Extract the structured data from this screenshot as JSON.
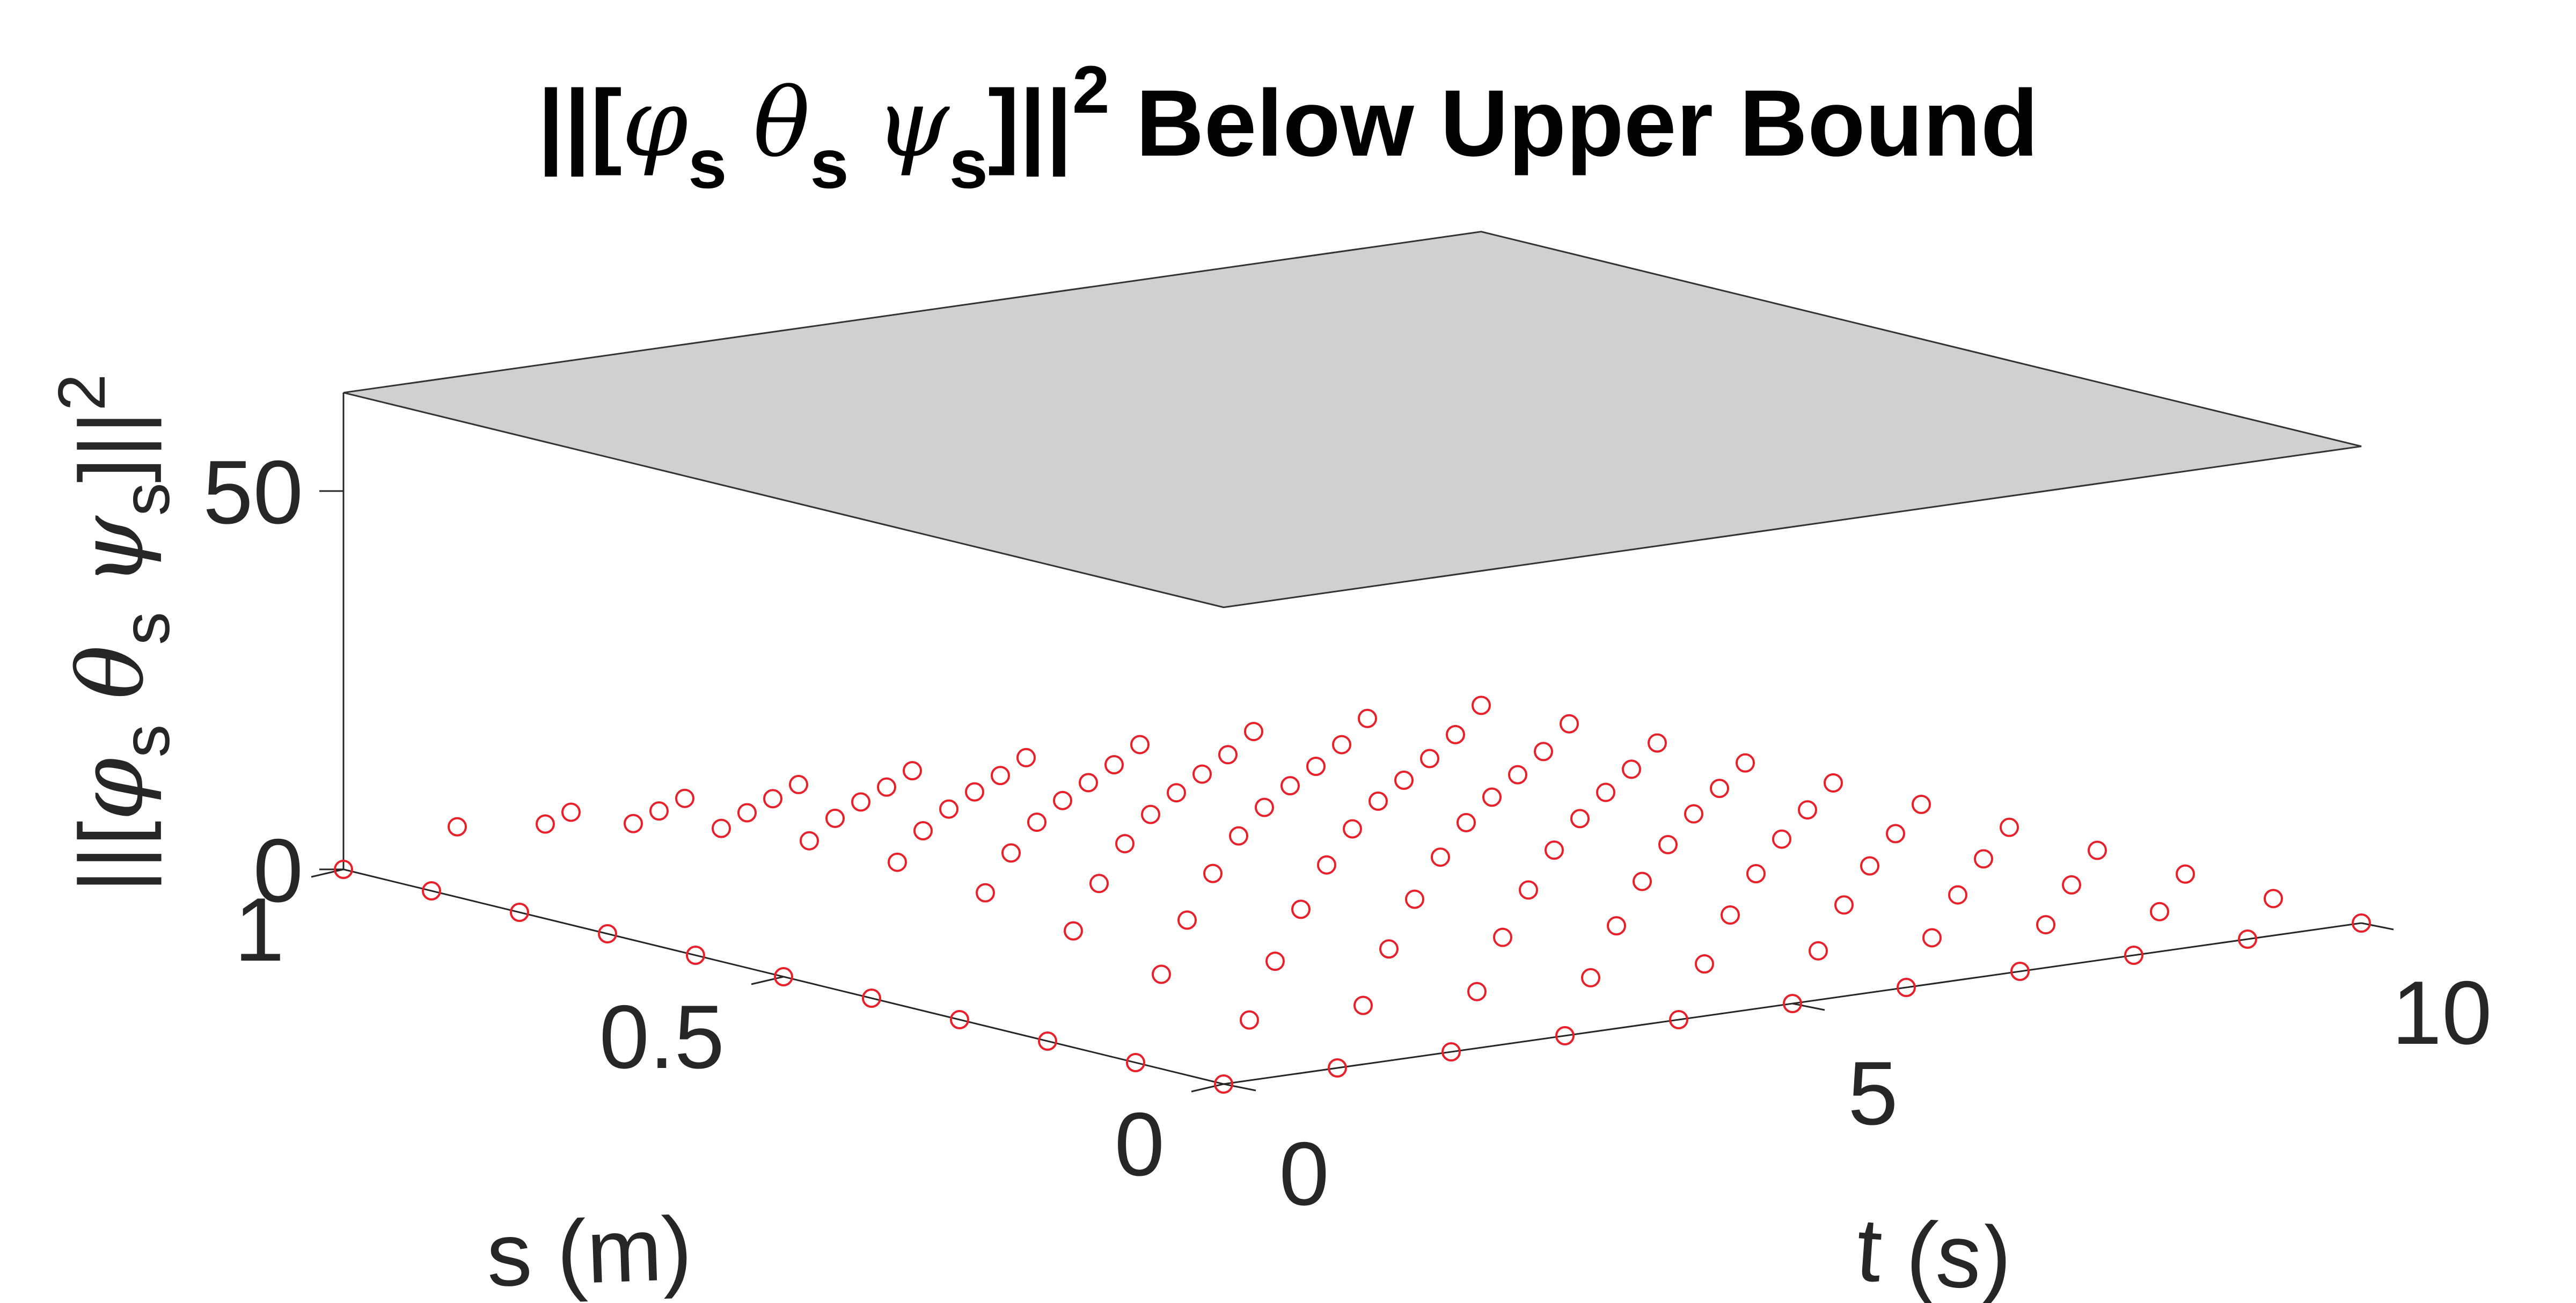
{
  "chart_data": {
    "type": "surface-3d",
    "title": {
      "prefix": "||[",
      "phi": "φ",
      "theta": "θ",
      "psi": "ψ",
      "subscript": "s",
      "close": "]||",
      "power": "2",
      "rest": " Below Upper Bound"
    },
    "axes": {
      "x": {
        "label": "t (s)",
        "lim": [
          0,
          10
        ],
        "ticks": [
          0,
          5,
          10
        ],
        "tick_labels": [
          "0",
          "5",
          "10"
        ]
      },
      "y": {
        "label": "s (m)",
        "lim": [
          0,
          1
        ],
        "ticks": [
          0,
          0.5,
          1
        ],
        "tick_labels": [
          "0",
          "0.5",
          "1"
        ]
      },
      "z": {
        "label": {
          "prefix": "||[",
          "phi": "φ",
          "theta": "θ",
          "psi": "ψ",
          "subscript": "s",
          "close": "]||",
          "power": "2"
        },
        "ticks": [
          0,
          50
        ],
        "tick_labels": [
          "0",
          "50"
        ]
      }
    },
    "series": [
      {
        "kind": "plane",
        "z": 63,
        "color": "#d0d0d0",
        "edge_color": "#333333"
      },
      {
        "kind": "scatter-surface",
        "marker": "circle",
        "color": "#e8202a",
        "t": [
          0,
          1,
          2,
          3,
          4,
          5,
          6,
          7,
          8,
          9,
          10
        ],
        "s": [
          0,
          0.1,
          0.2,
          0.3,
          0.4,
          0.5,
          0.6,
          0.7,
          0.8,
          0.9,
          1.0
        ],
        "z": [
          [
            0,
            0,
            0,
            0,
            0,
            0,
            0,
            0,
            0,
            0,
            0
          ],
          [
            0,
            3.5,
            6.7,
            9.6,
            11.8,
            13.0,
            13.0,
            11.8,
            9.6,
            6.7,
            3.5
          ],
          [
            0,
            3.3,
            6.3,
            8.9,
            10.9,
            12.1,
            12.2,
            11.0,
            8.9,
            6.3,
            3.3
          ],
          [
            0,
            3.0,
            5.8,
            8.2,
            10.1,
            11.2,
            11.2,
            10.1,
            8.2,
            5.8,
            3.0
          ],
          [
            0,
            2.7,
            5.2,
            7.4,
            9.1,
            10.1,
            10.1,
            9.1,
            7.4,
            5.2,
            2.7
          ],
          [
            0,
            2.4,
            4.6,
            6.5,
            8.0,
            8.9,
            8.9,
            8.0,
            6.5,
            4.6,
            2.4
          ],
          [
            0,
            2.0,
            3.9,
            5.5,
            6.8,
            7.6,
            7.6,
            6.8,
            5.5,
            3.9,
            2.0
          ],
          [
            0,
            1.6,
            3.1,
            4.4,
            5.4,
            6.0,
            6.0,
            5.4,
            4.4,
            3.1,
            1.6
          ],
          [
            0,
            1.2,
            2.3,
            3.3,
            4.0,
            4.5,
            4.5,
            4.0,
            3.3,
            2.3,
            1.2
          ],
          [
            0,
            0.8,
            1.5,
            2.1,
            2.6,
            2.9,
            2.9,
            2.6,
            2.1,
            1.5,
            0.8
          ],
          [
            0,
            0.4,
            0.8,
            1.1,
            1.3,
            1.5,
            1.5,
            1.3,
            1.1,
            0.8,
            0.4
          ]
        ]
      }
    ],
    "grid": false
  }
}
